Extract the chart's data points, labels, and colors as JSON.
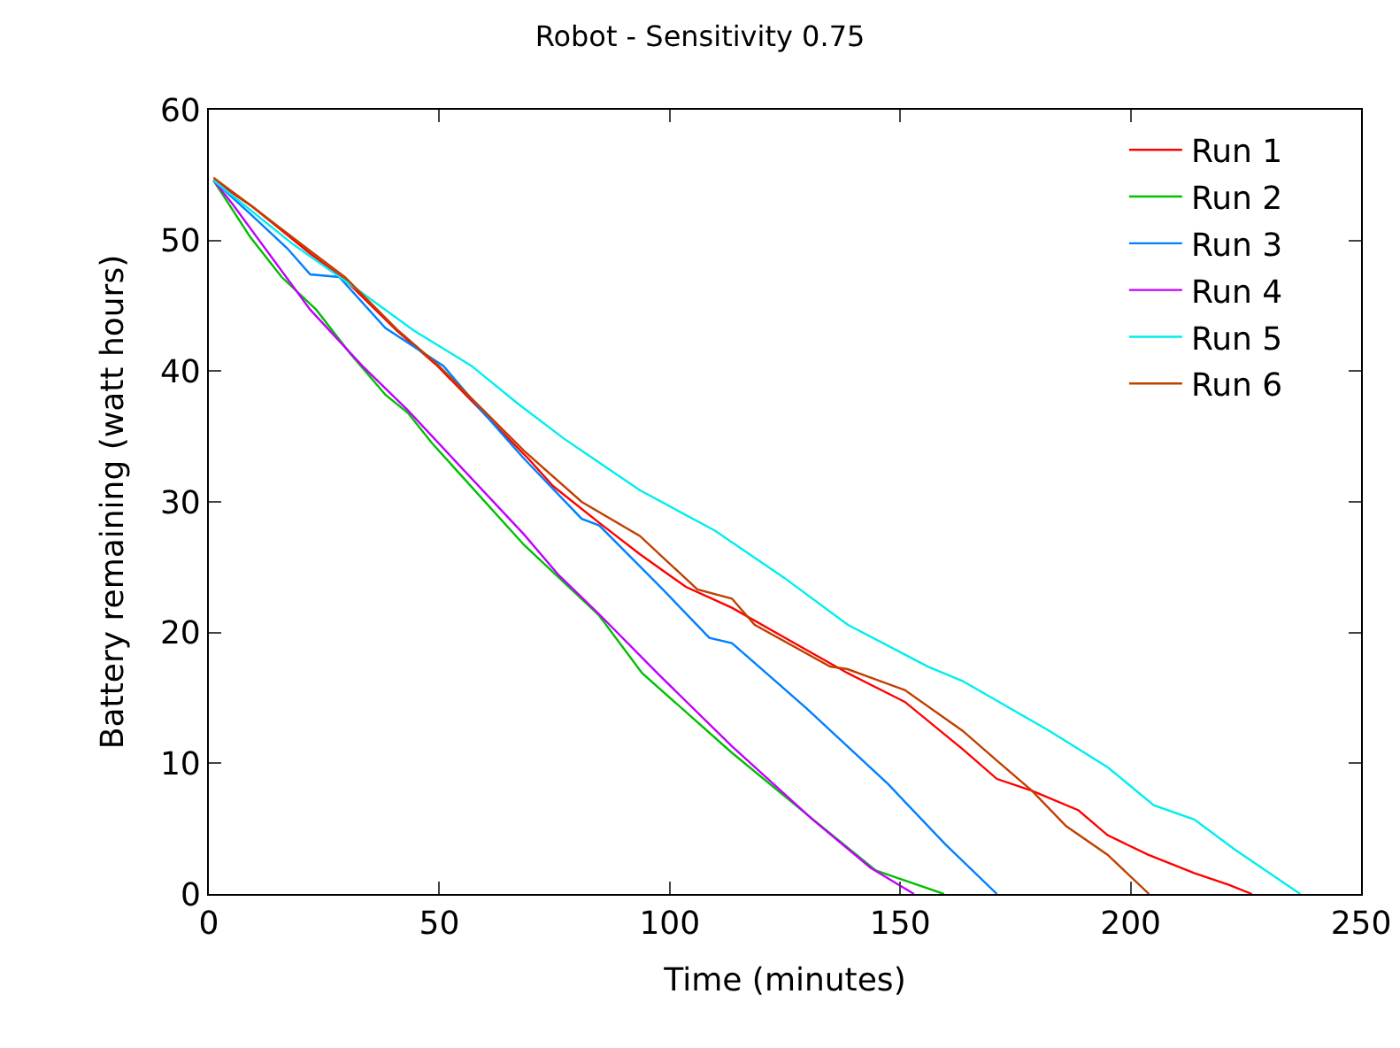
{
  "chart_data": {
    "type": "line",
    "title": "Robot - Sensitivity 0.75",
    "xlabel": "Time (minutes)",
    "ylabel": "Battery remaining (watt hours)",
    "xlim": [
      0,
      250
    ],
    "xticks": [
      0,
      50,
      100,
      150,
      200,
      250
    ],
    "ylim": [
      0,
      60
    ],
    "yticks": [
      0,
      10,
      20,
      30,
      40,
      50,
      60
    ],
    "legend": "top right",
    "marker": "none",
    "line_style": "solid",
    "series": [
      {
        "name": "Run 1",
        "color": "#ff0000",
        "x": [
          1,
          9.4,
          22,
          29.5,
          40.8,
          49.6,
          59.6,
          69.6,
          74.7,
          84.7,
          93.5,
          103.5,
          113.5,
          126,
          138.6,
          151,
          163.5,
          171,
          178.6,
          188.7,
          195,
          203.8,
          213.8,
          221.3,
          226.3
        ],
        "values": [
          54.6,
          52.6,
          49,
          47,
          43.1,
          40.4,
          36.8,
          33.2,
          31.2,
          28.4,
          26,
          23.5,
          21.9,
          19.4,
          16.9,
          14.7,
          11.1,
          8.8,
          7.9,
          6.4,
          4.5,
          3,
          1.6,
          0.7,
          0
        ]
      },
      {
        "name": "Run 2",
        "color": "#00c000",
        "x": [
          1,
          8.9,
          15.8,
          23.3,
          30.8,
          38.3,
          43.2,
          48.4,
          68.4,
          84.7,
          94,
          113.5,
          129.7,
          144.7,
          159.5
        ],
        "values": [
          54.6,
          50.3,
          47.2,
          44.7,
          41.3,
          38.2,
          36.8,
          34.5,
          26.7,
          21.3,
          16.9,
          10.8,
          6.1,
          1.8,
          0
        ]
      },
      {
        "name": "Run 3",
        "color": "#0080ff",
        "x": [
          1,
          9.4,
          17,
          22,
          28.3,
          38.3,
          50.9,
          59.6,
          68.4,
          80.9,
          84.7,
          98.5,
          108.6,
          113.5,
          129.7,
          147.4,
          159.8,
          171
        ],
        "values": [
          54.6,
          51.9,
          49.4,
          47.4,
          47.2,
          43.3,
          40.4,
          36.8,
          33.3,
          28.7,
          28.2,
          23.3,
          19.6,
          19.2,
          14.2,
          8.4,
          3.8,
          0
        ]
      },
      {
        "name": "Run 4",
        "color": "#c000ff",
        "x": [
          1,
          5.1,
          22,
          33.3,
          43.2,
          68.4,
          75.9,
          84.7,
          97.3,
          113.5,
          131,
          143.6,
          153
        ],
        "values": [
          54.6,
          52.8,
          44.7,
          40.4,
          37,
          27.5,
          24.4,
          21.4,
          16.9,
          11.3,
          5.7,
          2,
          0
        ]
      },
      {
        "name": "Run 5",
        "color": "#00eeee",
        "x": [
          1,
          18.3,
          32,
          44.5,
          57,
          67.1,
          77.2,
          93.5,
          109.8,
          124.8,
          138.6,
          156,
          163.5,
          182.3,
          195,
          205,
          213.8,
          222.6,
          236.8
        ],
        "values": [
          54.6,
          49.7,
          46.3,
          43.1,
          40.4,
          37.5,
          34.8,
          30.9,
          27.8,
          24.2,
          20.6,
          17.4,
          16.3,
          12.5,
          9.7,
          6.8,
          5.7,
          3.4,
          0
        ]
      },
      {
        "name": "Run 6",
        "color": "#c04000",
        "x": [
          1,
          9.4,
          22,
          29.5,
          40.8,
          49.6,
          59.6,
          68.4,
          80.9,
          93.5,
          106,
          113.5,
          118.4,
          134.8,
          138.6,
          151,
          163.5,
          171,
          178.6,
          186,
          195,
          204
        ],
        "values": [
          54.8,
          52.6,
          49.2,
          47.2,
          43.2,
          40.5,
          37,
          33.9,
          30,
          27.4,
          23.3,
          22.6,
          20.6,
          17.4,
          17.2,
          15.6,
          12.5,
          10.2,
          7.9,
          5.2,
          3,
          0
        ]
      }
    ]
  }
}
